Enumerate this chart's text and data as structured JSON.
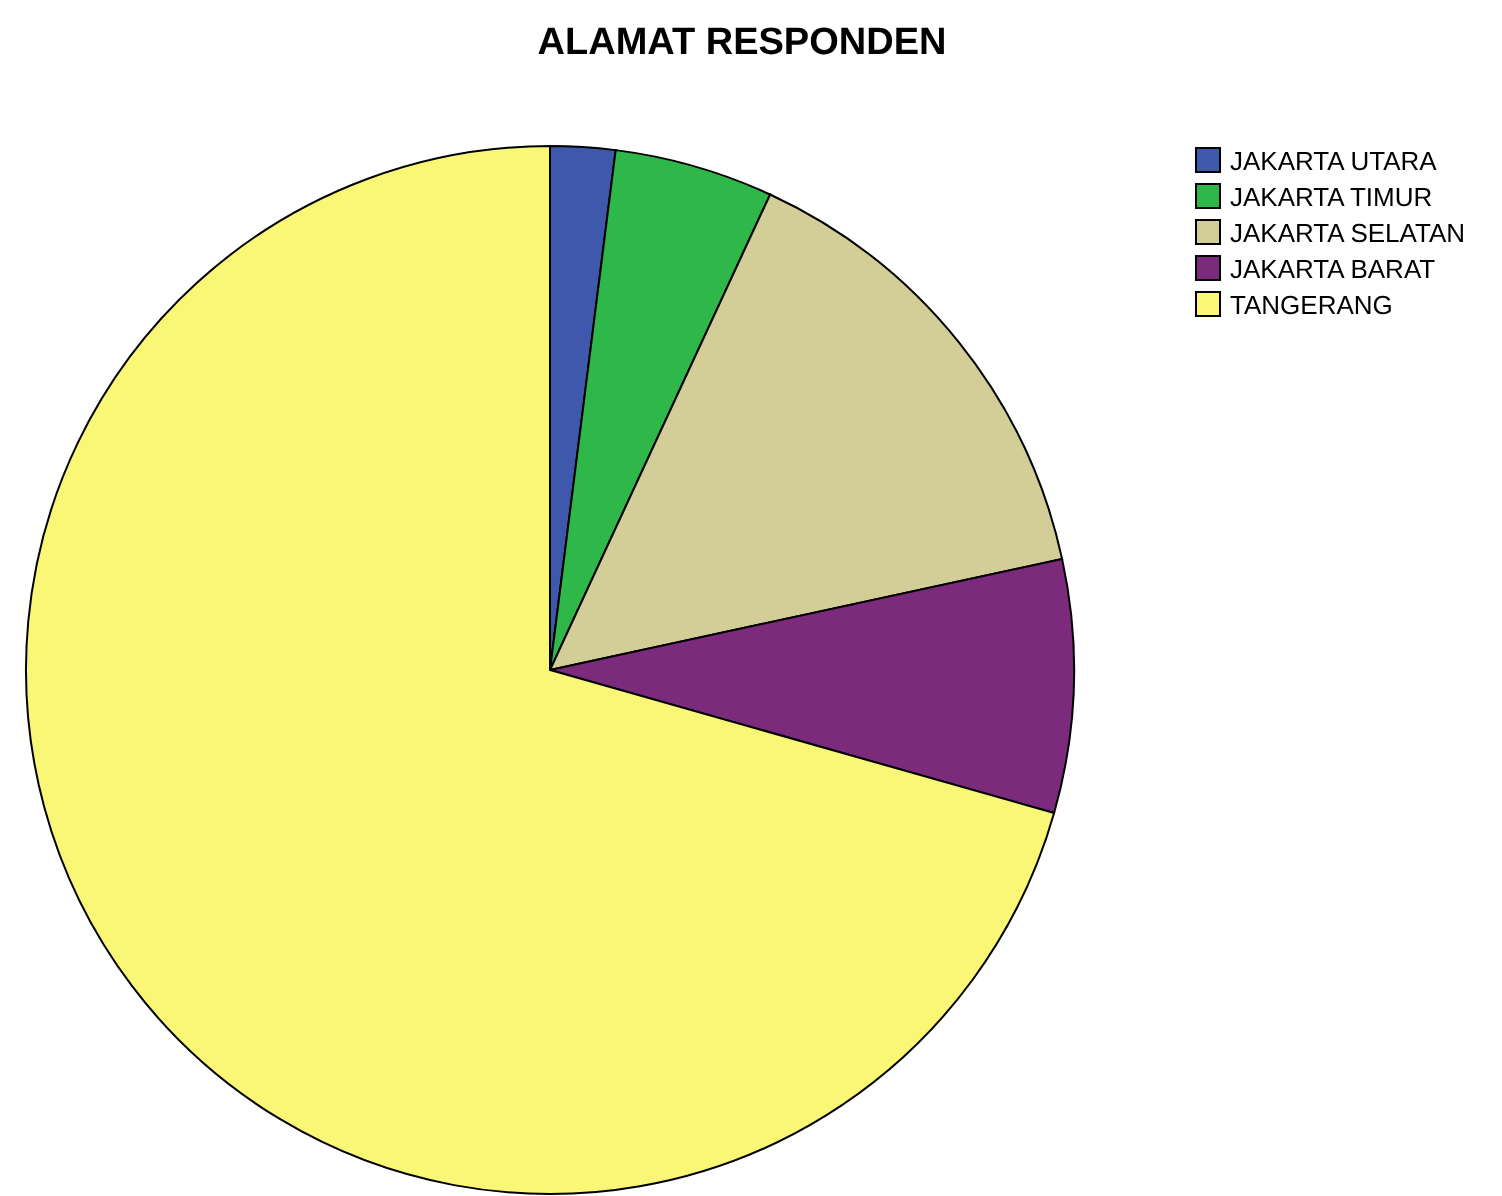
{
  "chart_data": {
    "type": "pie",
    "title": "ALAMAT RESPONDEN",
    "categories": [
      "JAKARTA UTARA",
      "JAKARTA TIMUR",
      "JAKARTA SELATAN",
      "JAKARTA BARAT",
      "TANGERANG"
    ],
    "values": [
      2,
      4.9,
      14.7,
      7.8,
      70.6
    ],
    "colors": [
      "#3e58ac",
      "#2eb84a",
      "#d3ce98",
      "#7b2a7c",
      "#f9f775"
    ],
    "legend": "top right"
  }
}
